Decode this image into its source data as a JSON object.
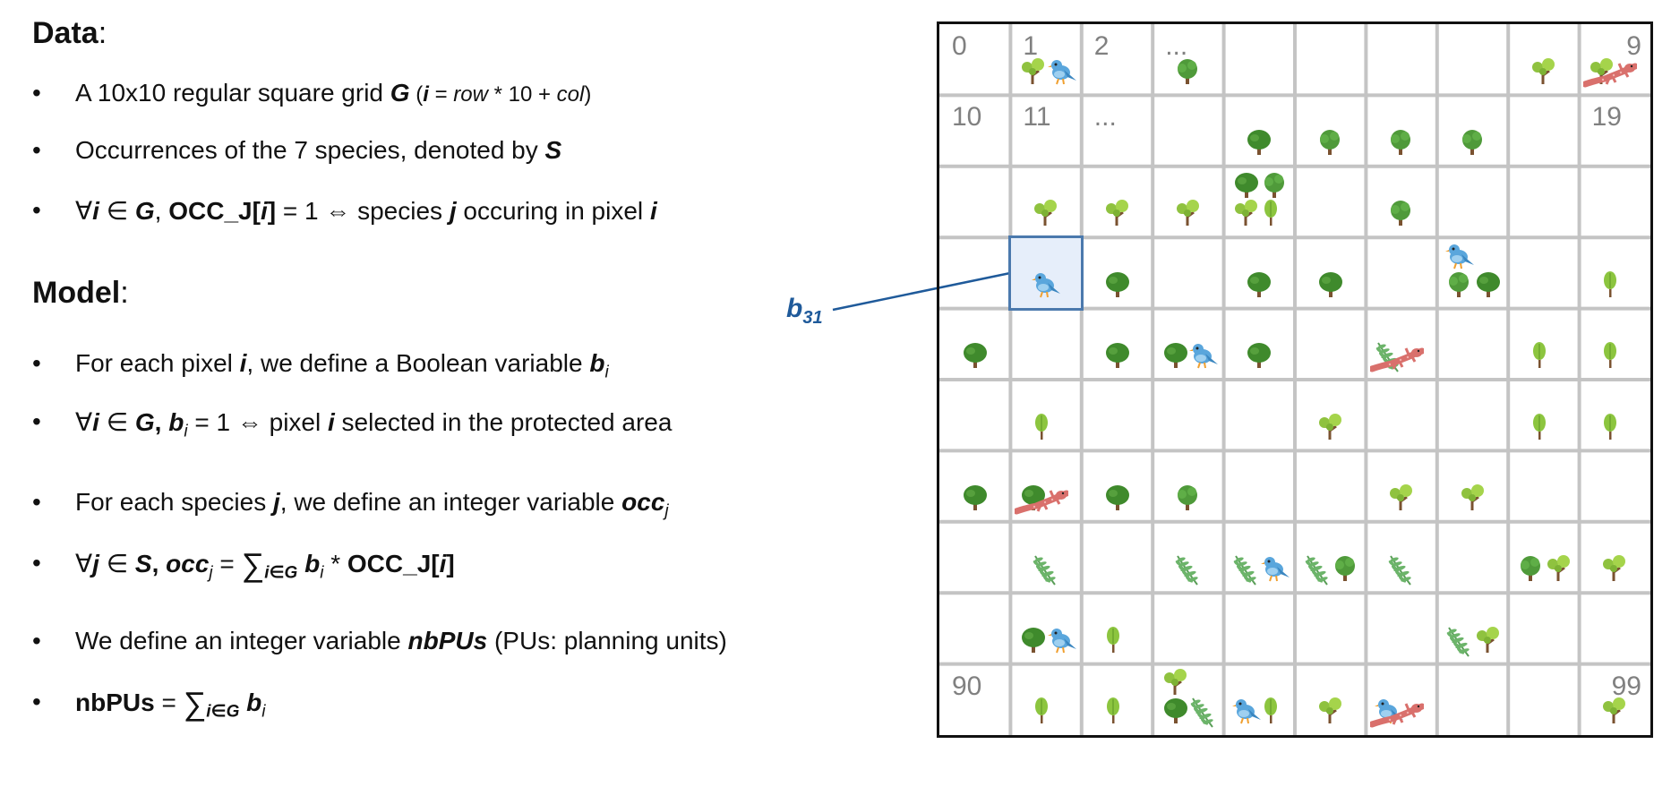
{
  "data_section": {
    "heading": "Data",
    "colon": ":",
    "items": [
      {
        "p1": "A 10x10 regular square grid ",
        "G": "G",
        "p2": " (",
        "i": "i",
        "p3": " = ",
        "row": "row",
        "p4": " * 10 + ",
        "col": "col",
        "p5": ")"
      },
      {
        "p1": "Occurrences of the 7 species, denoted by ",
        "S": "S"
      },
      {
        "forall": "∀",
        "i": "i",
        "in": " ∈ ",
        "G": "G",
        "comma": ", ",
        "occ": "OCC_J[",
        "i2": "i",
        "close": "]",
        "rest": " = 1 ⇔ species ",
        "j": "j",
        "rest2": " occuring in pixel ",
        "i3": "i"
      }
    ]
  },
  "model_section": {
    "heading": "Model",
    "colon": ":",
    "items": [
      {
        "p1": "For each pixel ",
        "i": "i",
        "p2": ", we define a Boolean variable ",
        "b": "b",
        "sub": "i"
      },
      {
        "forall": "∀",
        "i": "i",
        "in": " ∈ ",
        "G": "G",
        "comma": ", ",
        "b": "b",
        "sub": "i",
        "rest": " = 1 ⇔ pixel ",
        "i2": "i",
        "rest2": " selected in the protected area"
      },
      {
        "p1": "For each species ",
        "j": "j",
        "p2": ", we define an integer variable ",
        "occ": "occ",
        "sub": "j"
      },
      {
        "forall": "∀",
        "j": "j",
        "in": " ∈ ",
        "S": "S",
        "comma": ", ",
        "occ": "occ",
        "sub": "j",
        "eq": " = ",
        "sum": "∑",
        "sumsub": "i∈G",
        "b": "b",
        "bsub": "i",
        "times": " * ",
        "occJ": "OCC_J[",
        "i": "i",
        "close": "]"
      },
      {
        "p1": "We define an integer variable ",
        "nb": "nbPUs",
        "p2": " (PUs: planning units)"
      },
      {
        "nb": "nbPUs",
        "eq": " = ",
        "sum": "∑",
        "sumsub": "i∈G",
        "b": "b",
        "bsub": "i"
      }
    ],
    "bullet": "•"
  },
  "grid": {
    "rows": 10,
    "cols": 10,
    "cell_labels": [
      {
        "cell": 0,
        "text": "0"
      },
      {
        "cell": 1,
        "text": "1"
      },
      {
        "cell": 2,
        "text": "2"
      },
      {
        "cell": 3,
        "text": "..."
      },
      {
        "cell": 9,
        "text": "9",
        "align": "right"
      },
      {
        "cell": 10,
        "text": "10"
      },
      {
        "cell": 11,
        "text": "11"
      },
      {
        "cell": 12,
        "text": "..."
      },
      {
        "cell": 19,
        "text": "19"
      },
      {
        "cell": 90,
        "text": "90"
      },
      {
        "cell": 99,
        "text": "99",
        "align": "right"
      }
    ],
    "highlighted_cell": 31,
    "highlight_label": {
      "b": "b",
      "sub": "31"
    },
    "colors": {
      "line": "#c4c4c4",
      "border": "#111111",
      "highlight_fill": "#e6eefa",
      "highlight_border": "#4b79ad",
      "label": "#1f5a9a",
      "number": "#808080"
    },
    "species_icons": [
      "broadleaf-tree",
      "acacia-tree",
      "oak-tree",
      "sapling",
      "bird",
      "fern",
      "salamander"
    ],
    "occurrences": [
      {
        "cell": 1,
        "icons": [
          "acacia-tree",
          "bird"
        ]
      },
      {
        "cell": 3,
        "icons": [
          "broadleaf-tree"
        ]
      },
      {
        "cell": 8,
        "icons": [
          "acacia-tree"
        ]
      },
      {
        "cell": 9,
        "icons": [
          "acacia-tree",
          "salamander"
        ]
      },
      {
        "cell": 14,
        "icons": [
          "oak-tree"
        ]
      },
      {
        "cell": 15,
        "icons": [
          "broadleaf-tree"
        ]
      },
      {
        "cell": 16,
        "icons": [
          "broadleaf-tree"
        ]
      },
      {
        "cell": 17,
        "icons": [
          "broadleaf-tree"
        ]
      },
      {
        "cell": 21,
        "icons": [
          "acacia-tree"
        ]
      },
      {
        "cell": 22,
        "icons": [
          "acacia-tree"
        ]
      },
      {
        "cell": 23,
        "icons": [
          "acacia-tree"
        ]
      },
      {
        "cell": 24,
        "icons": [
          "acacia-tree",
          "sapling",
          "oak-tree",
          "broadleaf-tree"
        ]
      },
      {
        "cell": 26,
        "icons": [
          "broadleaf-tree"
        ]
      },
      {
        "cell": 29,
        "icons": []
      },
      {
        "cell": 31,
        "icons": [
          "bird"
        ]
      },
      {
        "cell": 32,
        "icons": [
          "oak-tree"
        ]
      },
      {
        "cell": 34,
        "icons": [
          "oak-tree"
        ]
      },
      {
        "cell": 35,
        "icons": [
          "oak-tree"
        ]
      },
      {
        "cell": 37,
        "icons": [
          "broadleaf-tree",
          "oak-tree",
          "bird"
        ]
      },
      {
        "cell": 39,
        "icons": [
          "sapling"
        ]
      },
      {
        "cell": 40,
        "icons": [
          "oak-tree"
        ]
      },
      {
        "cell": 42,
        "icons": [
          "oak-tree"
        ]
      },
      {
        "cell": 43,
        "icons": [
          "oak-tree",
          "bird"
        ]
      },
      {
        "cell": 44,
        "icons": [
          "oak-tree"
        ]
      },
      {
        "cell": 46,
        "icons": [
          "fern",
          "salamander"
        ]
      },
      {
        "cell": 48,
        "icons": [
          "sapling"
        ]
      },
      {
        "cell": 49,
        "icons": [
          "sapling"
        ]
      },
      {
        "cell": 51,
        "icons": [
          "sapling"
        ]
      },
      {
        "cell": 55,
        "icons": [
          "acacia-tree"
        ]
      },
      {
        "cell": 58,
        "icons": [
          "sapling"
        ]
      },
      {
        "cell": 59,
        "icons": [
          "sapling"
        ]
      },
      {
        "cell": 60,
        "icons": [
          "oak-tree"
        ]
      },
      {
        "cell": 61,
        "icons": [
          "oak-tree",
          "salamander"
        ]
      },
      {
        "cell": 62,
        "icons": [
          "oak-tree"
        ]
      },
      {
        "cell": 63,
        "icons": [
          "broadleaf-tree"
        ]
      },
      {
        "cell": 66,
        "icons": [
          "acacia-tree"
        ]
      },
      {
        "cell": 67,
        "icons": [
          "acacia-tree"
        ]
      },
      {
        "cell": 71,
        "icons": [
          "fern"
        ]
      },
      {
        "cell": 73,
        "icons": [
          "fern"
        ]
      },
      {
        "cell": 74,
        "icons": [
          "fern",
          "bird"
        ]
      },
      {
        "cell": 75,
        "icons": [
          "fern",
          "broadleaf-tree"
        ]
      },
      {
        "cell": 76,
        "icons": [
          "fern"
        ]
      },
      {
        "cell": 78,
        "icons": [
          "broadleaf-tree",
          "acacia-tree"
        ]
      },
      {
        "cell": 79,
        "icons": [
          "acacia-tree"
        ]
      },
      {
        "cell": 81,
        "icons": [
          "oak-tree",
          "bird"
        ]
      },
      {
        "cell": 82,
        "icons": [
          "sapling"
        ]
      },
      {
        "cell": 87,
        "icons": [
          "fern",
          "acacia-tree"
        ]
      },
      {
        "cell": 90,
        "icons": []
      },
      {
        "cell": 91,
        "icons": [
          "sapling"
        ]
      },
      {
        "cell": 92,
        "icons": [
          "sapling"
        ]
      },
      {
        "cell": 93,
        "icons": [
          "oak-tree",
          "fern",
          "acacia-tree"
        ]
      },
      {
        "cell": 94,
        "icons": [
          "bird",
          "sapling"
        ]
      },
      {
        "cell": 95,
        "icons": [
          "acacia-tree"
        ]
      },
      {
        "cell": 96,
        "icons": [
          "bird",
          "salamander"
        ]
      },
      {
        "cell": 99,
        "icons": [
          "acacia-tree"
        ]
      }
    ]
  }
}
